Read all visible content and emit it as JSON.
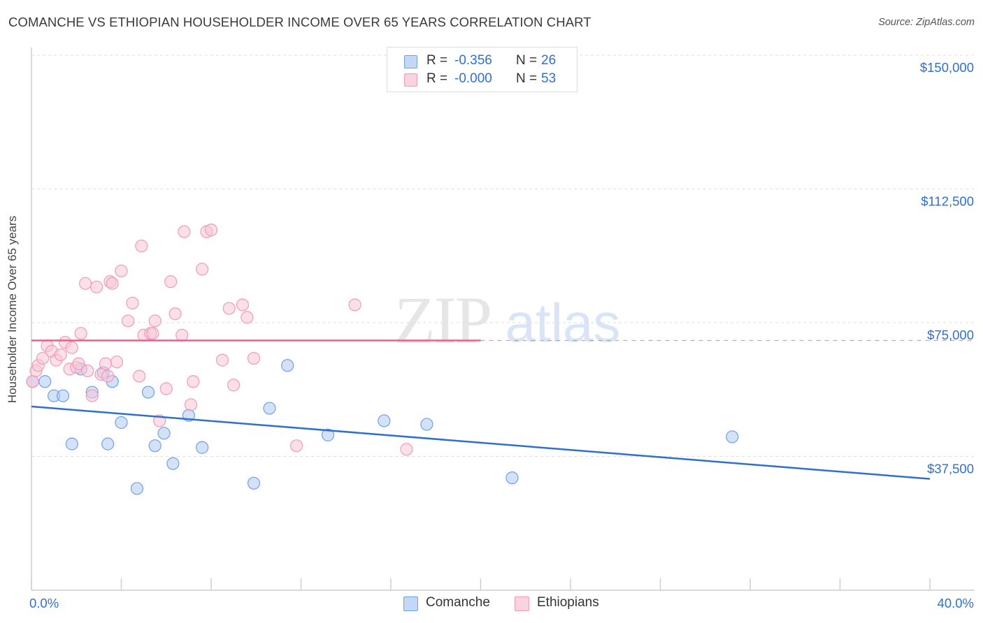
{
  "title": "COMANCHE VS ETHIOPIAN HOUSEHOLDER INCOME OVER 65 YEARS CORRELATION CHART",
  "source": "Source: ZipAtlas.com",
  "watermark": {
    "zip": "ZIP",
    "atlas": "atlas"
  },
  "legend_top": {
    "rows": [
      {
        "r_label": "R =",
        "r_value": "-0.356",
        "n_label": "N =",
        "n_value": "26",
        "color": "#6fa0e8"
      },
      {
        "r_label": "R =",
        "r_value": "-0.000",
        "n_label": "N =",
        "n_value": "53",
        "color": "#f29ab8"
      }
    ]
  },
  "legend_bottom": [
    {
      "label": "Comanche",
      "color": "#6fa0e8"
    },
    {
      "label": "Ethiopians",
      "color": "#f29ab8"
    }
  ],
  "colors": {
    "comanche_fill": "#aecbf2",
    "comanche_stroke": "#6fa0e8",
    "comanche_line": "#2f6fd0",
    "ethiopian_fill": "#f8c6d6",
    "ethiopian_stroke": "#f29ab8",
    "ethiopian_line": "#e0668f",
    "tick_label": "#2f6fd0",
    "grid": "#dddddd"
  },
  "chart_data": {
    "type": "scatter",
    "title": "COMANCHE VS ETHIOPIAN HOUSEHOLDER INCOME OVER 65 YEARS CORRELATION CHART",
    "xlabel": "",
    "ylabel": "Householder Income Over 65 years",
    "xlim": [
      0,
      40
    ],
    "ylim": [
      0,
      155000
    ],
    "x_tick_labels": [
      {
        "value": 0,
        "label": "0.0%"
      },
      {
        "value": 40,
        "label": "40.0%"
      }
    ],
    "y_tick_labels": [
      {
        "value": 37500,
        "label": "$37,500"
      },
      {
        "value": 75000,
        "label": "$75,000"
      },
      {
        "value": 112500,
        "label": "$112,500"
      },
      {
        "value": 150000,
        "label": "$150,000"
      }
    ],
    "grid": true,
    "legend_position": "bottom",
    "series": [
      {
        "name": "Comanche",
        "points": [
          [
            0.05,
            58500
          ],
          [
            0.6,
            58500
          ],
          [
            1.0,
            54500
          ],
          [
            1.4,
            54500
          ],
          [
            1.8,
            41000
          ],
          [
            2.2,
            62000
          ],
          [
            2.7,
            55500
          ],
          [
            3.2,
            61000
          ],
          [
            3.6,
            58500
          ],
          [
            3.4,
            41000
          ],
          [
            4.0,
            47000
          ],
          [
            4.7,
            28500
          ],
          [
            5.2,
            55500
          ],
          [
            5.5,
            40500
          ],
          [
            5.9,
            44000
          ],
          [
            6.3,
            35500
          ],
          [
            7.0,
            49000
          ],
          [
            7.6,
            40000
          ],
          [
            9.9,
            30000
          ],
          [
            10.6,
            51000
          ],
          [
            11.4,
            63000
          ],
          [
            13.2,
            43500
          ],
          [
            15.7,
            47500
          ],
          [
            17.6,
            46500
          ],
          [
            21.4,
            31500
          ],
          [
            31.2,
            43000
          ]
        ],
        "trend": {
          "x": [
            0,
            40
          ],
          "y": [
            51500,
            31200
          ]
        }
      },
      {
        "name": "Ethiopians",
        "points": [
          [
            0.05,
            58500
          ],
          [
            0.2,
            61500
          ],
          [
            0.3,
            63000
          ],
          [
            0.5,
            65000
          ],
          [
            0.7,
            68500
          ],
          [
            0.9,
            67000
          ],
          [
            1.1,
            64500
          ],
          [
            1.3,
            66000
          ],
          [
            1.5,
            69500
          ],
          [
            1.7,
            62000
          ],
          [
            1.8,
            68000
          ],
          [
            2.0,
            62500
          ],
          [
            2.1,
            63500
          ],
          [
            2.2,
            72000
          ],
          [
            2.4,
            86000
          ],
          [
            2.5,
            61500
          ],
          [
            2.7,
            54500
          ],
          [
            2.9,
            85000
          ],
          [
            3.1,
            60500
          ],
          [
            3.3,
            63500
          ],
          [
            3.4,
            60000
          ],
          [
            3.5,
            86500
          ],
          [
            3.6,
            86000
          ],
          [
            3.8,
            64000
          ],
          [
            4.0,
            89500
          ],
          [
            4.3,
            75500
          ],
          [
            4.5,
            80500
          ],
          [
            4.8,
            60000
          ],
          [
            4.9,
            96500
          ],
          [
            5.0,
            71500
          ],
          [
            5.3,
            72000
          ],
          [
            5.5,
            75500
          ],
          [
            5.7,
            47500
          ],
          [
            6.0,
            56500
          ],
          [
            6.2,
            86500
          ],
          [
            6.4,
            77500
          ],
          [
            6.8,
            100500
          ],
          [
            7.1,
            52000
          ],
          [
            7.2,
            58500
          ],
          [
            7.6,
            90000
          ],
          [
            7.8,
            100500
          ],
          [
            8.0,
            101000
          ],
          [
            8.5,
            64500
          ],
          [
            8.8,
            79000
          ],
          [
            9.0,
            57500
          ],
          [
            9.4,
            80000
          ],
          [
            9.6,
            76500
          ],
          [
            9.9,
            65000
          ],
          [
            11.8,
            40500
          ],
          [
            14.4,
            80000
          ],
          [
            16.7,
            39500
          ],
          [
            6.7,
            71500
          ],
          [
            5.4,
            72000
          ]
        ],
        "trend": {
          "x": [
            0,
            20
          ],
          "y": [
            70000,
            70000
          ],
          "dashed_extension_to": 40
        }
      }
    ],
    "annotations": [
      {
        "text": "R = -0.356  N = 26",
        "series": "Comanche"
      },
      {
        "text": "R = -0.000  N = 53",
        "series": "Ethiopians"
      }
    ]
  }
}
